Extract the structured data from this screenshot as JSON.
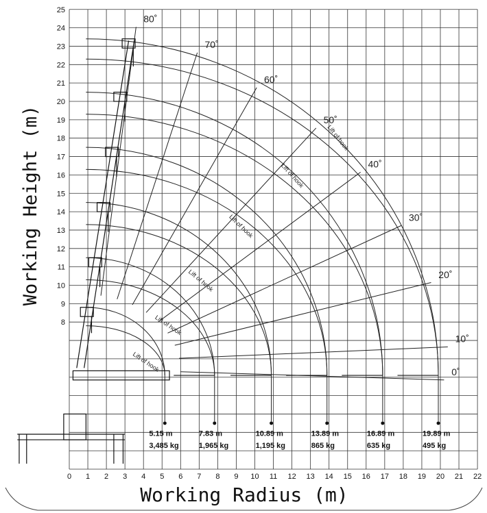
{
  "chart_data": {
    "type": "line",
    "xlabel": "Working Radius (m)",
    "ylabel": "Working Height (m)",
    "xlim": [
      0,
      22
    ],
    "ylim": [
      0,
      25
    ],
    "x_ticks": [
      "0",
      "1",
      "2",
      "3",
      "4",
      "5",
      "6",
      "7",
      "8",
      "9",
      "10",
      "11",
      "12",
      "13",
      "14",
      "15",
      "16",
      "17",
      "18",
      "19",
      "20",
      "21",
      "22"
    ],
    "y_ticks": [
      "8",
      "9",
      "10",
      "11",
      "12",
      "13",
      "14",
      "15",
      "16",
      "17",
      "18",
      "19",
      "20",
      "21",
      "22",
      "23",
      "24",
      "25"
    ],
    "boom_angles": [
      {
        "label": "80˚",
        "x": 4.0,
        "y": 24.3
      },
      {
        "label": "70˚",
        "x": 7.3,
        "y": 22.9
      },
      {
        "label": "60˚",
        "x": 10.5,
        "y": 21.0
      },
      {
        "label": "50˚",
        "x": 13.7,
        "y": 18.8
      },
      {
        "label": "40˚",
        "x": 16.1,
        "y": 16.4
      },
      {
        "label": "30˚",
        "x": 18.3,
        "y": 13.5
      },
      {
        "label": "20˚",
        "x": 19.9,
        "y": 10.4
      },
      {
        "label": "10˚",
        "x": 20.8,
        "y": 6.9
      },
      {
        "label": "0˚",
        "x": 20.6,
        "y": 5.1
      }
    ],
    "hook_lift_labels": [
      "Lift of hook",
      "Lift of hook",
      "Lift of hook",
      "Lift of hook",
      "Lift of hook",
      "Lift of hook"
    ],
    "boom_sections": [
      {
        "radius_label": "5.15 m",
        "load_label": "3,485 kg",
        "radius": 5.15,
        "load": 3485,
        "tip_height": 8.8,
        "hook_height": 7.8
      },
      {
        "radius_label": "7.83 m",
        "load_label": "1,965 kg",
        "radius": 7.83,
        "load": 1965,
        "tip_height": 11.5,
        "hook_height": 10.3
      },
      {
        "radius_label": "10.89 m",
        "load_label": "1,195 kg",
        "radius": 10.89,
        "load": 1195,
        "tip_height": 14.5,
        "hook_height": 13.3
      },
      {
        "radius_label": "13.89 m",
        "load_label": "865 kg",
        "radius": 13.89,
        "load": 865,
        "tip_height": 17.5,
        "hook_height": 16.3
      },
      {
        "radius_label": "16.89 m",
        "load_label": "635 kg",
        "radius": 16.89,
        "load": 635,
        "tip_height": 20.5,
        "hook_height": 19.3
      },
      {
        "radius_label": "19.89 m",
        "load_label": "495 kg",
        "radius": 19.89,
        "load": 495,
        "tip_height": 23.4,
        "hook_height": 22.3
      }
    ]
  }
}
